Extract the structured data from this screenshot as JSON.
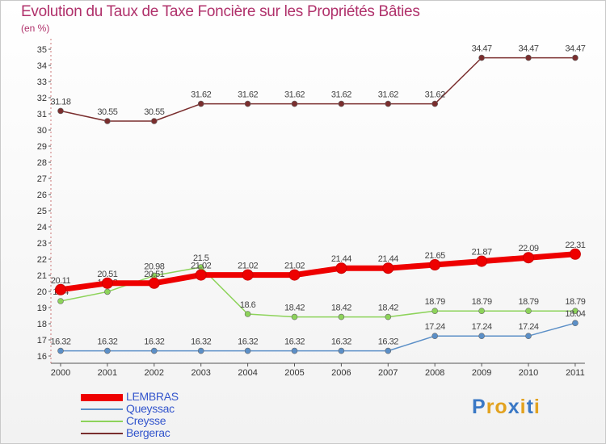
{
  "header": {
    "title": "Evolution du Taux de Taxe Foncière sur les Propriétés Bâties",
    "unit": "(en %)"
  },
  "logo": {
    "text": "Proxiti"
  },
  "chart_data": {
    "type": "line",
    "title": "Evolution du Taux de Taxe Foncière sur les Propriétés Bâties",
    "ylabel": "(en %)",
    "xlabel": "",
    "x": [
      "2000",
      "2001",
      "2002",
      "2003",
      "2004",
      "2005",
      "2006",
      "2007",
      "2008",
      "2009",
      "2010",
      "2011"
    ],
    "ylim": [
      16,
      35
    ],
    "yticks": [
      "16",
      "17",
      "18",
      "19",
      "20",
      "21",
      "22",
      "23",
      "24",
      "25",
      "26",
      "27",
      "28",
      "29",
      "30",
      "31",
      "32",
      "33",
      "34",
      "35"
    ],
    "grid": false,
    "legend_position": "bottom-left",
    "series": [
      {
        "name": "LEMBRAS",
        "color": "#ee0000",
        "values": [
          20.11,
          20.51,
          20.51,
          21.02,
          21.02,
          21.02,
          21.44,
          21.44,
          21.65,
          21.87,
          22.09,
          22.31
        ],
        "labels": [
          "20.11",
          "20.51",
          "20.51",
          "21.02",
          "21.02",
          "21.02",
          "21.44",
          "21.44",
          "21.65",
          "21.87",
          "22.09",
          "22.31"
        ]
      },
      {
        "name": "Queyssac",
        "color": "#5b8fc7",
        "values": [
          16.32,
          16.32,
          16.32,
          16.32,
          16.32,
          16.32,
          16.32,
          16.32,
          17.24,
          17.24,
          17.24,
          18.04
        ],
        "labels": [
          "16.32",
          "16.32",
          "16.32",
          "16.32",
          "16.32",
          "16.32",
          "16.32",
          "16.32",
          "17.24",
          "17.24",
          "17.24",
          "18.04"
        ]
      },
      {
        "name": "Creysse",
        "color": "#8dd35a",
        "values": [
          19.4,
          19.98,
          20.98,
          21.5,
          18.6,
          18.42,
          18.42,
          18.42,
          18.79,
          18.79,
          18.79,
          18.79
        ],
        "labels": [
          "19.4",
          "19.98",
          "20.98",
          "21.5",
          "18.6",
          "18.42",
          "18.42",
          "18.42",
          "18.79",
          "18.79",
          "18.79",
          "18.79"
        ]
      },
      {
        "name": "Bergerac",
        "color": "#7a2e2e",
        "values": [
          31.18,
          30.55,
          30.55,
          31.62,
          31.62,
          31.62,
          31.62,
          31.62,
          31.62,
          34.47,
          34.47,
          34.47
        ],
        "labels": [
          "31.18",
          "30.55",
          "30.55",
          "31.62",
          "31.62",
          "31.62",
          "31.62",
          "31.62",
          "31.62",
          "34.47",
          "34.47",
          "34.47"
        ]
      }
    ]
  }
}
